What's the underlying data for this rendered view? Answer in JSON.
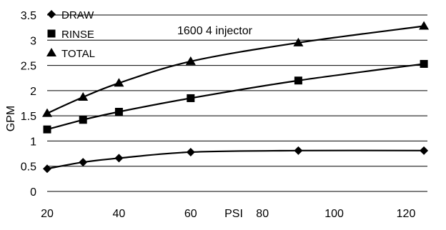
{
  "chart_data": {
    "type": "line",
    "title": "",
    "xlabel": "PSI",
    "ylabel": "GPM",
    "xlim": [
      20,
      125
    ],
    "ylim": [
      0,
      3.5
    ],
    "xticks": [
      20,
      40,
      60,
      80,
      100,
      120
    ],
    "yticks": [
      0,
      0.5,
      1,
      1.5,
      2,
      2.5,
      3,
      3.5
    ],
    "grid": "horizontal",
    "legend_position": "top-left",
    "annotations": [
      {
        "text": "1600 4 injector",
        "x": 65,
        "y": 3.22
      }
    ],
    "series": [
      {
        "name": "DRAW",
        "marker": "diamond",
        "x": [
          20,
          30,
          40,
          60,
          90,
          125
        ],
        "y": [
          0.45,
          0.58,
          0.66,
          0.78,
          0.81,
          0.81
        ]
      },
      {
        "name": "RINSE",
        "marker": "square",
        "x": [
          20,
          30,
          40,
          60,
          90,
          125
        ],
        "y": [
          1.23,
          1.42,
          1.58,
          1.85,
          2.2,
          2.53
        ]
      },
      {
        "name": "TOTAL",
        "marker": "triangle",
        "x": [
          20,
          30,
          40,
          60,
          90,
          125
        ],
        "y": [
          1.55,
          1.87,
          2.15,
          2.58,
          2.95,
          3.28
        ]
      }
    ]
  }
}
